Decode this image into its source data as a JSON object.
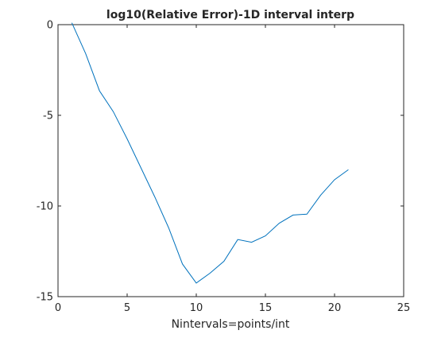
{
  "chart_data": {
    "type": "line",
    "title": "log10(Relative Error)-1D interval interp",
    "xlabel": "Nintervals=points/int",
    "ylabel": "",
    "xlim": [
      0,
      25
    ],
    "ylim": [
      -15,
      0
    ],
    "xticks": [
      "0",
      "5",
      "10",
      "15",
      "20",
      "25"
    ],
    "yticks": [
      "0",
      "-5",
      "-10",
      "-15"
    ],
    "xtick_values": [
      0,
      5,
      10,
      15,
      20,
      25
    ],
    "ytick_values": [
      0,
      -5,
      -10,
      -15
    ],
    "grid": false,
    "line_color": "#0072bd",
    "series": [
      {
        "x": [
          1,
          2,
          3,
          4,
          5,
          6,
          7,
          8,
          9,
          10,
          11,
          12,
          13,
          14,
          15,
          16,
          17,
          18,
          19,
          20,
          21
        ],
        "values": [
          0.1,
          -1.6,
          -3.65,
          -4.8,
          -6.3,
          -7.9,
          -9.5,
          -11.2,
          -13.2,
          -14.25,
          -13.7,
          -13.05,
          -11.85,
          -12.0,
          -11.65,
          -10.95,
          -10.5,
          -10.45,
          -9.4,
          -8.55,
          -8.0
        ]
      }
    ]
  }
}
